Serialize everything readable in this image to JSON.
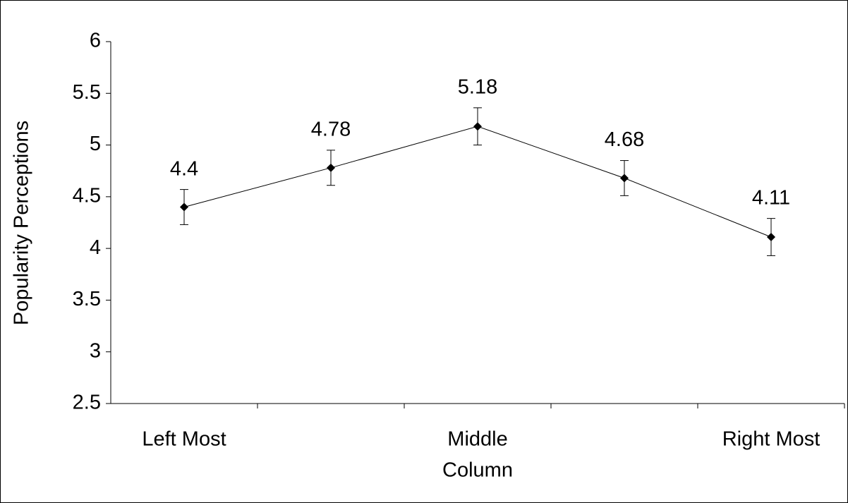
{
  "chart_data": {
    "type": "line",
    "x_label": "Column",
    "y_label": "Popularity Perceptions",
    "categories": [
      "Left Most",
      null,
      "Middle",
      null,
      "Right Most"
    ],
    "values": [
      4.4,
      4.78,
      5.18,
      4.68,
      4.11
    ],
    "errors": [
      0.17,
      0.17,
      0.18,
      0.17,
      0.18
    ],
    "color": "#000000",
    "ylim": [
      2.5,
      6
    ],
    "yticks": [
      2.5,
      3,
      3.5,
      4,
      4.5,
      5,
      5.5,
      6
    ],
    "grid": false
  }
}
